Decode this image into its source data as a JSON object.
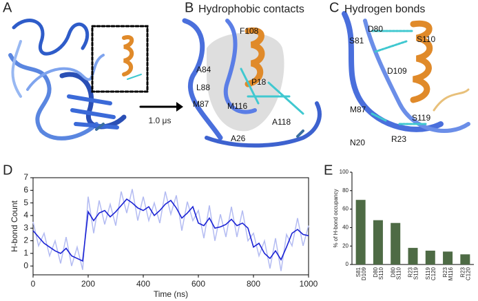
{
  "panel_labels": [
    "A",
    "B",
    "C",
    "D",
    "E"
  ],
  "arrow_label": "1.0 μs",
  "panel_b": {
    "title": "Hydrophobic contacts",
    "residues": [
      "F108",
      "A84",
      "L88",
      "P18",
      "M87",
      "M116",
      "A118",
      "A26"
    ]
  },
  "panel_c": {
    "title": "Hydrogen bonds",
    "residues": [
      "D80",
      "S81",
      "S110",
      "D109",
      "M87",
      "S119",
      "N20",
      "R23"
    ]
  },
  "chart_data": [
    {
      "type": "line",
      "xlabel": "Time (ns)",
      "ylabel": "H-bond Count",
      "x": [
        0,
        20,
        40,
        60,
        80,
        100,
        120,
        140,
        160,
        180,
        200,
        220,
        240,
        260,
        280,
        300,
        320,
        340,
        360,
        380,
        400,
        420,
        440,
        460,
        480,
        500,
        520,
        540,
        560,
        580,
        600,
        620,
        640,
        660,
        680,
        700,
        720,
        740,
        760,
        780,
        800,
        820,
        840,
        860,
        880,
        900,
        920,
        940,
        960,
        980,
        1000
      ],
      "series": [
        {
          "color": "#b3bbf2",
          "values": [
            3.5,
            1.6,
            2.6,
            0.8,
            2.0,
            0.2,
            2.3,
            0.0,
            1.5,
            -0.3,
            5.5,
            2.6,
            5.2,
            3.3,
            4.9,
            3.2,
            5.9,
            4.2,
            6.1,
            3.6,
            5.5,
            3.6,
            5.0,
            3.4,
            5.9,
            4.1,
            5.6,
            2.8,
            5.1,
            3.6,
            4.4,
            2.2,
            4.8,
            2.0,
            4.1,
            2.3,
            4.7,
            2.3,
            4.4,
            2.0,
            2.6,
            0.8,
            2.0,
            -0.2,
            2.2,
            -0.4,
            2.5,
            1.6,
            3.8,
            1.6,
            3.2
          ]
        },
        {
          "color": "#1a22d4",
          "values": [
            2.8,
            2.3,
            1.8,
            1.5,
            1.2,
            1.0,
            1.4,
            0.8,
            0.6,
            0.4,
            4.3,
            3.6,
            4.2,
            4.4,
            3.9,
            4.3,
            4.8,
            5.3,
            5.0,
            4.6,
            4.4,
            4.7,
            4.0,
            4.4,
            4.9,
            5.2,
            4.6,
            3.8,
            4.2,
            4.7,
            3.4,
            3.2,
            3.8,
            3.0,
            3.1,
            3.3,
            3.7,
            3.2,
            3.4,
            3.0,
            1.5,
            1.8,
            1.0,
            0.6,
            1.2,
            0.5,
            1.5,
            2.6,
            2.9,
            2.5,
            2.4
          ]
        }
      ],
      "xlim": [
        0,
        1000
      ],
      "xticks": [
        0,
        200,
        400,
        600,
        800,
        1000
      ],
      "ylim": [
        -0.7,
        7
      ],
      "yticks": [
        0,
        1,
        2,
        3,
        4,
        5,
        6,
        7
      ]
    },
    {
      "type": "bar",
      "ylabel": "% of H-bond occupancy",
      "categories": [
        [
          "S81",
          "D109"
        ],
        [
          "D80",
          "S110"
        ],
        [
          "D80",
          "S110"
        ],
        [
          "R23",
          "S119"
        ],
        [
          "S119",
          "C120"
        ],
        [
          "R23",
          "M116"
        ],
        [
          "R23",
          "C120"
        ]
      ],
      "label_colors": [
        "#2f6fc0",
        "#d9782a"
      ],
      "values": [
        70,
        48,
        45,
        18,
        15,
        14,
        11
      ],
      "color": "#4e6b45",
      "ylim": [
        0,
        100
      ],
      "yticks": [
        0,
        20,
        40,
        60,
        80,
        100
      ]
    }
  ]
}
